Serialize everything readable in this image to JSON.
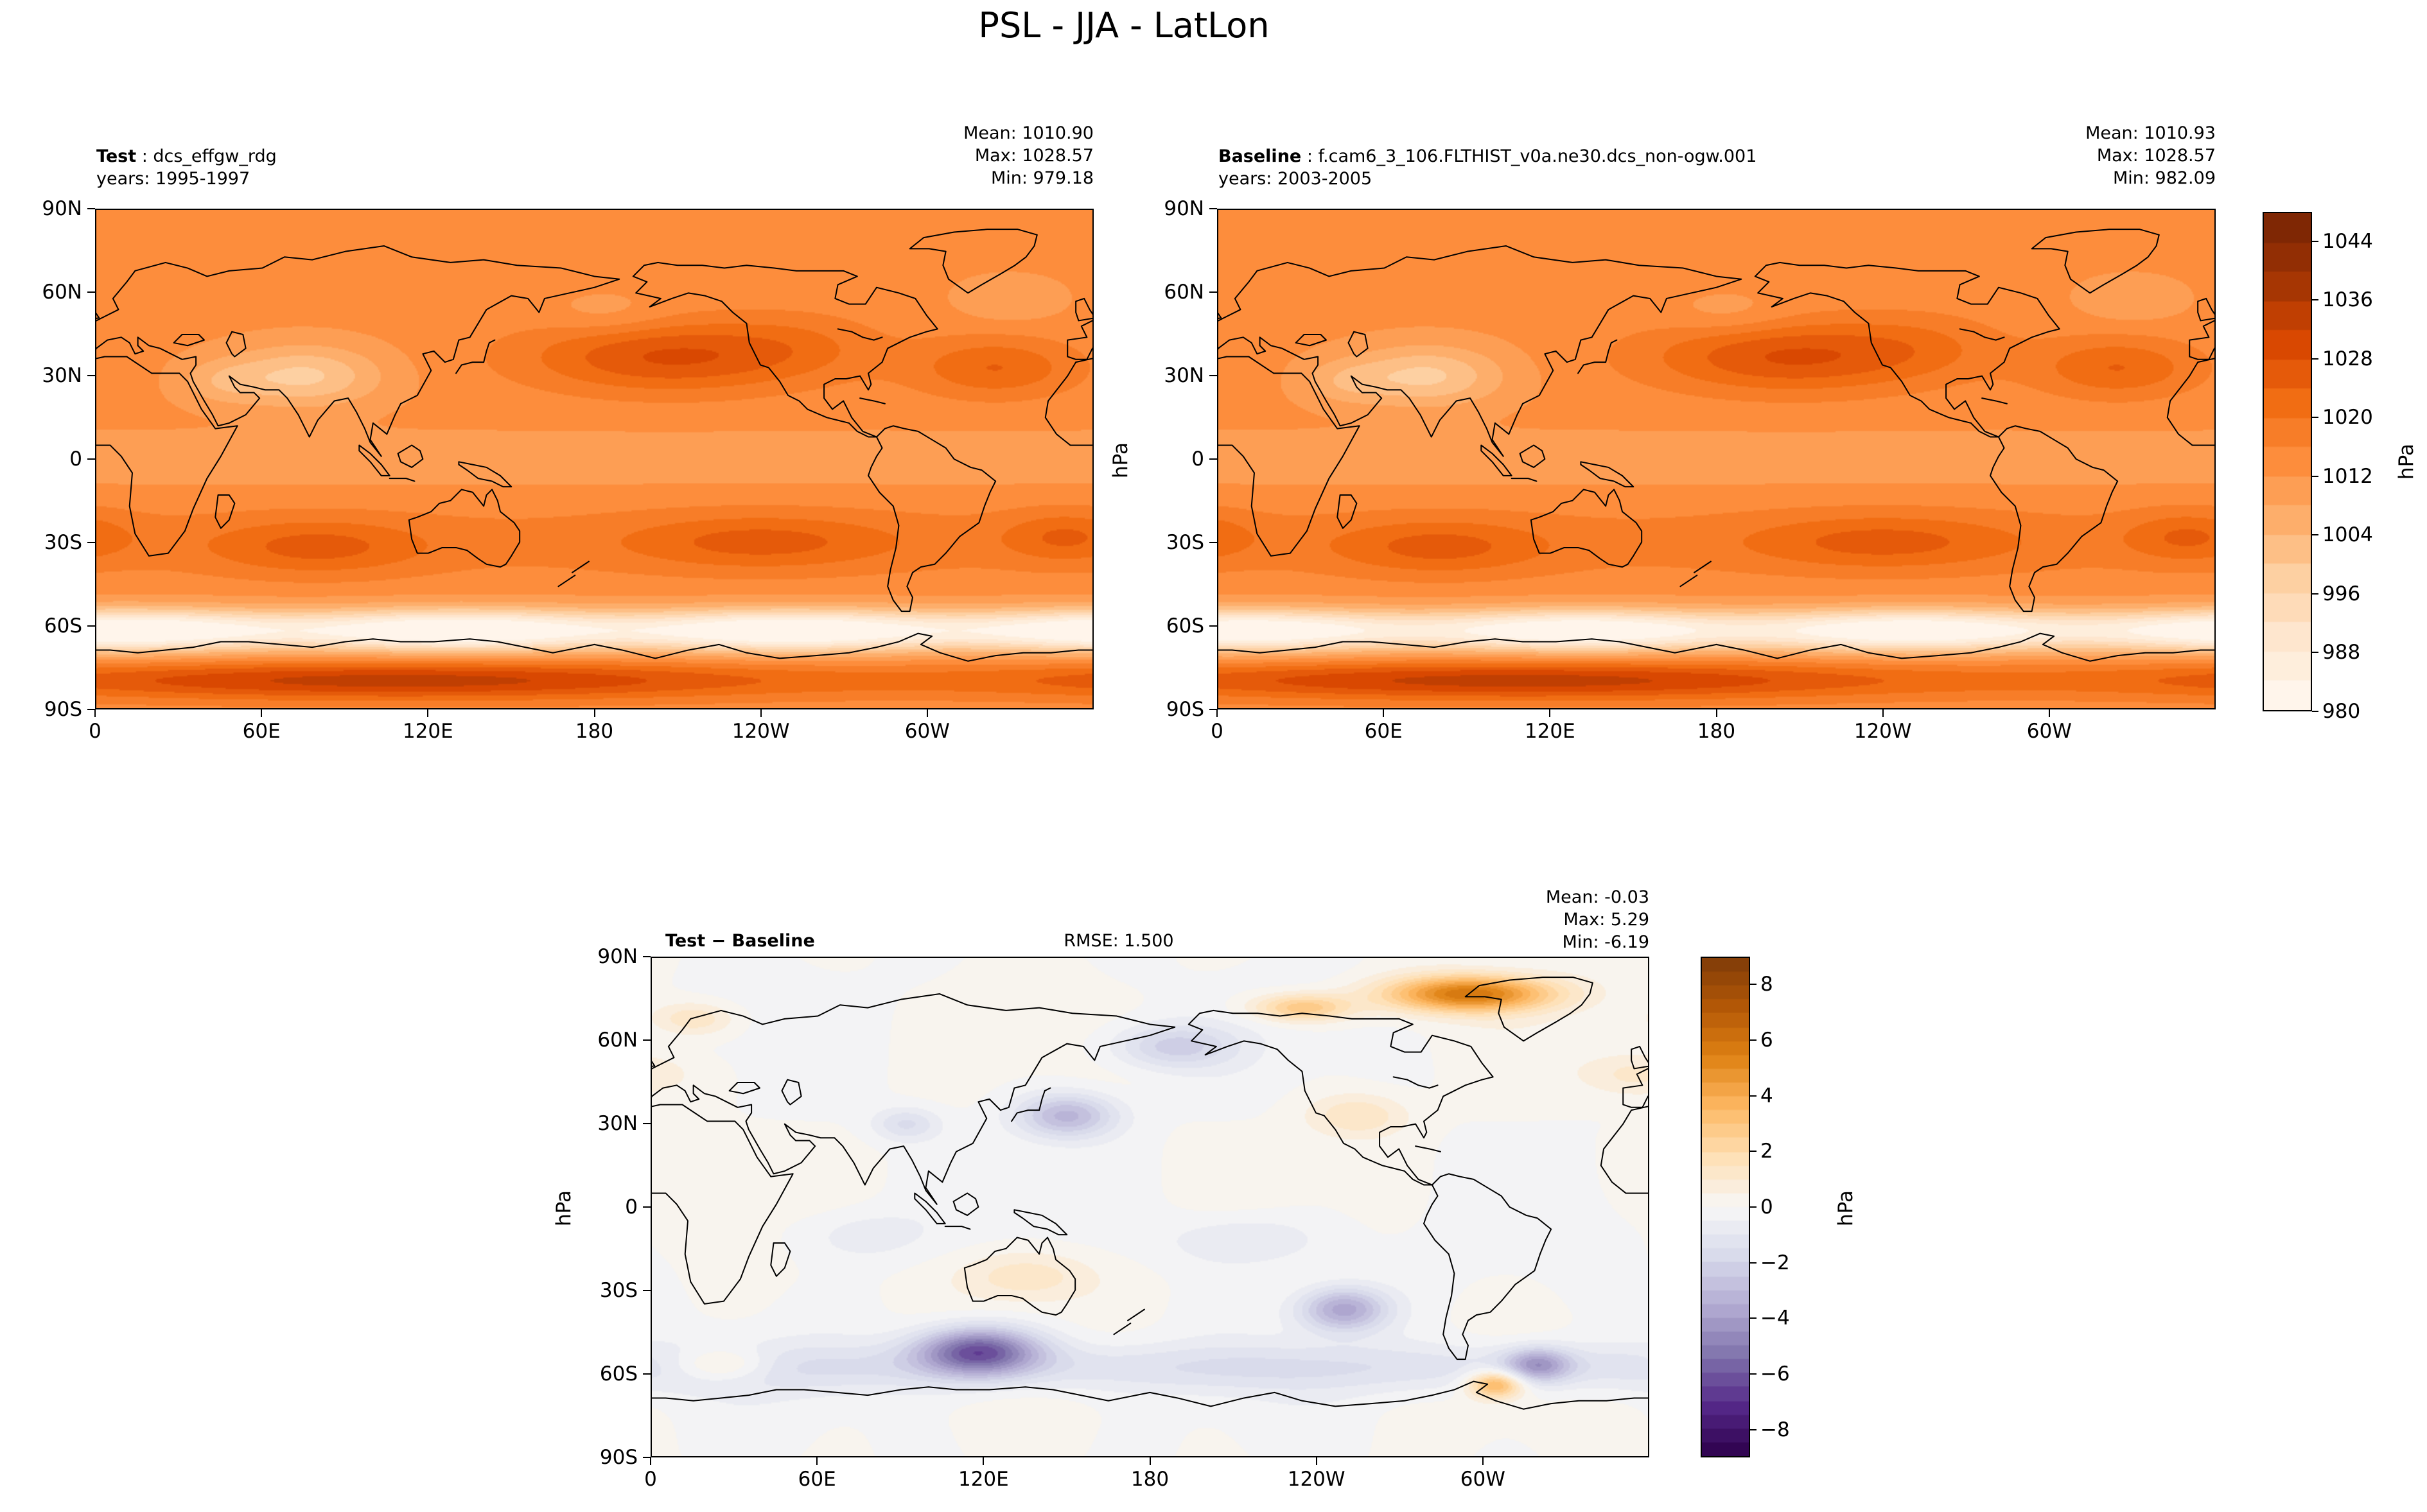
{
  "title": "PSL - JJA - LatLon",
  "panels": {
    "test": {
      "label_bold": "Test",
      "label_rest": " : dcs_effgw_rdg",
      "years": "years: 1995-1997",
      "stats": {
        "mean": "Mean: 1010.90",
        "max": "Max: 1028.57",
        "min": "Min: 979.18"
      }
    },
    "baseline": {
      "label_bold": "Baseline",
      "label_rest": " : f.cam6_3_106.FLTHIST_v0a.ne30.dcs_non-ogw.001",
      "years": "years: 2003-2005",
      "ylabel": "hPa",
      "stats": {
        "mean": "Mean: 1010.93",
        "max": "Max: 1028.57",
        "min": "Min: 982.09"
      }
    },
    "diff": {
      "label": "Test − Baseline",
      "rmse": "RMSE: 1.500",
      "ylabel": "hPa",
      "stats": {
        "mean": "Mean: -0.03",
        "max": "Max: 5.29",
        "min": "Min: -6.19"
      }
    }
  },
  "axes": {
    "x_ticks": [
      {
        "v": 0,
        "label": "0"
      },
      {
        "v": 60,
        "label": "60E"
      },
      {
        "v": 120,
        "label": "120E"
      },
      {
        "v": 180,
        "label": "180"
      },
      {
        "v": 240,
        "label": "120W"
      },
      {
        "v": 300,
        "label": "60W"
      }
    ],
    "y_ticks": [
      {
        "v": 90,
        "label": "90N"
      },
      {
        "v": 60,
        "label": "60N"
      },
      {
        "v": 30,
        "label": "30N"
      },
      {
        "v": 0,
        "label": "0"
      },
      {
        "v": -30,
        "label": "30S"
      },
      {
        "v": -60,
        "label": "60S"
      },
      {
        "v": -90,
        "label": "90S"
      }
    ]
  },
  "colorbars": {
    "absolute": {
      "label": "hPa",
      "vmin": 980,
      "vmax": 1048,
      "ticks": [
        {
          "v": 1044,
          "label": "1044"
        },
        {
          "v": 1036,
          "label": "1036"
        },
        {
          "v": 1028,
          "label": "1028"
        },
        {
          "v": 1020,
          "label": "1020"
        },
        {
          "v": 1012,
          "label": "1012"
        },
        {
          "v": 1004,
          "label": "1004"
        },
        {
          "v": 996,
          "label": "996"
        },
        {
          "v": 988,
          "label": "988"
        },
        {
          "v": 980,
          "label": "980"
        }
      ]
    },
    "difference": {
      "label": "hPa",
      "vmin": -9,
      "vmax": 9,
      "ticks": [
        {
          "v": 8,
          "label": "8"
        },
        {
          "v": 6,
          "label": "6"
        },
        {
          "v": 4,
          "label": "4"
        },
        {
          "v": 2,
          "label": "2"
        },
        {
          "v": 0,
          "label": "0"
        },
        {
          "v": -2,
          "label": "−2"
        },
        {
          "v": -4,
          "label": "−4"
        },
        {
          "v": -6,
          "label": "−6"
        },
        {
          "v": -8,
          "label": "−8"
        }
      ]
    }
  },
  "chart_data": {
    "type": "heatmap",
    "subtype": "filled-contour global lat-lon maps (model diagnostics, sea level pressure)",
    "title": "PSL - JJA - LatLon",
    "variable": "PSL",
    "season": "JJA",
    "units": "hPa",
    "projection": "equirectangular, longitude 0 to 360E, latitude 90N to 90S",
    "x_tick_values": [
      0,
      60,
      120,
      180,
      240,
      300
    ],
    "x_tick_labels": [
      "0",
      "60E",
      "120E",
      "180",
      "120W",
      "60W"
    ],
    "y_tick_values": [
      90,
      60,
      30,
      0,
      -30,
      -60,
      -90
    ],
    "y_tick_labels": [
      "90N",
      "60N",
      "30N",
      "0",
      "30S",
      "60S",
      "90S"
    ],
    "panels": [
      {
        "name": "Test",
        "case": "dcs_effgw_rdg",
        "years": "1995-1997",
        "mean": 1010.9,
        "max": 1028.57,
        "min": 979.18,
        "colormap": "Oranges",
        "colorbar_range": [
          980,
          1048
        ],
        "colorbar_ticks": [
          980,
          988,
          996,
          1004,
          1012,
          1020,
          1028,
          1036,
          1044
        ]
      },
      {
        "name": "Baseline",
        "case": "f.cam6_3_106.FLTHIST_v0a.ne30.dcs_non-ogw.001",
        "years": "2003-2005",
        "mean": 1010.93,
        "max": 1028.57,
        "min": 982.09,
        "colormap": "Oranges",
        "colorbar_range": [
          980,
          1048
        ],
        "colorbar_ticks": [
          980,
          988,
          996,
          1004,
          1012,
          1020,
          1028,
          1036,
          1044
        ]
      },
      {
        "name": "Test - Baseline",
        "rmse": 1.5,
        "mean": -0.03,
        "max": 5.29,
        "min": -6.19,
        "colormap": "PuOr (reversed: positive orange, negative purple)",
        "colorbar_range": [
          -9,
          9
        ],
        "colorbar_ticks": [
          -8,
          -6,
          -4,
          -2,
          0,
          2,
          4,
          6,
          8
        ]
      }
    ],
    "notable_features": [
      "North Pacific subtropical high ~1028 hPa near 200-230E, 35N in both Test and Baseline",
      "Light low-pressure region (~996 hPa) over South/Central Asia monsoon area",
      "Southern-hemisphere subtropical high band near 30S",
      "Circumpolar trough (white, <=980-984 hPa) near 60S",
      "Higher pressure again over the Antarctic interior",
      "Difference map: strong negative (purple, min -6.19) near 110-120E 50S; positive (orange, max 5.29) over Arctic near 280-320E"
    ]
  }
}
